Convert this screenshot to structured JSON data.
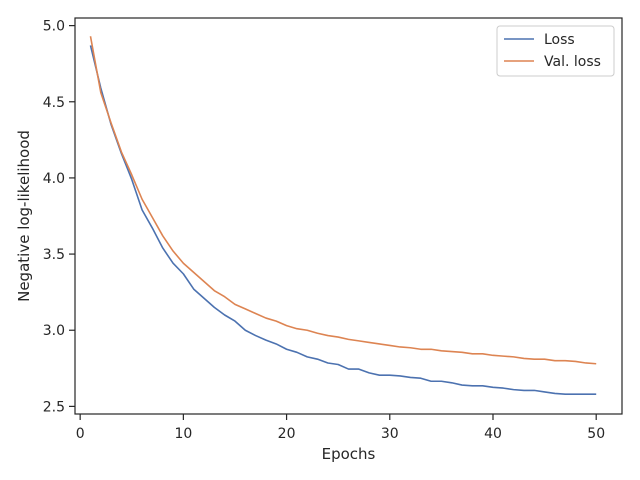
{
  "chart_data": {
    "type": "line",
    "xlabel": "Epochs",
    "ylabel": "Negative log-likelihood",
    "xlim": [
      -0.5,
      52.5
    ],
    "ylim": [
      2.45,
      5.05
    ],
    "xticks": [
      0,
      10,
      20,
      30,
      40,
      50
    ],
    "yticks": [
      2.5,
      3.0,
      3.5,
      4.0,
      4.5,
      5.0
    ],
    "xtick_labels": [
      "0",
      "10",
      "20",
      "30",
      "40",
      "50"
    ],
    "ytick_labels": [
      "2.5",
      "3.0",
      "3.5",
      "4.0",
      "4.5",
      "5.0"
    ],
    "grid": false,
    "legend_position": "top-right",
    "x": [
      1,
      2,
      3,
      4,
      5,
      6,
      7,
      8,
      9,
      10,
      11,
      12,
      13,
      14,
      15,
      16,
      17,
      18,
      19,
      20,
      21,
      22,
      23,
      24,
      25,
      26,
      27,
      28,
      29,
      30,
      31,
      32,
      33,
      34,
      35,
      36,
      37,
      38,
      39,
      40,
      41,
      42,
      43,
      44,
      45,
      46,
      47,
      48,
      49,
      50
    ],
    "series": [
      {
        "name": "Loss",
        "color": "#4c72b0",
        "values": [
          4.87,
          4.59,
          4.35,
          4.16,
          3.99,
          3.79,
          3.67,
          3.54,
          3.44,
          3.37,
          3.27,
          3.21,
          3.15,
          3.1,
          3.06,
          3.0,
          2.965,
          2.935,
          2.91,
          2.875,
          2.855,
          2.825,
          2.81,
          2.785,
          2.775,
          2.745,
          2.745,
          2.72,
          2.705,
          2.705,
          2.7,
          2.69,
          2.685,
          2.665,
          2.665,
          2.655,
          2.64,
          2.635,
          2.635,
          2.625,
          2.62,
          2.61,
          2.605,
          2.605,
          2.595,
          2.585,
          2.58,
          2.58,
          2.58,
          2.58
        ]
      },
      {
        "name": "Val. loss",
        "color": "#dd8452",
        "values": [
          4.93,
          4.56,
          4.36,
          4.17,
          4.02,
          3.86,
          3.74,
          3.62,
          3.52,
          3.44,
          3.38,
          3.32,
          3.26,
          3.22,
          3.17,
          3.14,
          3.11,
          3.08,
          3.06,
          3.03,
          3.01,
          3.0,
          2.98,
          2.965,
          2.955,
          2.94,
          2.93,
          2.92,
          2.91,
          2.9,
          2.89,
          2.885,
          2.875,
          2.875,
          2.865,
          2.86,
          2.855,
          2.845,
          2.845,
          2.835,
          2.83,
          2.825,
          2.815,
          2.81,
          2.81,
          2.8,
          2.8,
          2.795,
          2.785,
          2.78
        ]
      }
    ]
  },
  "colors": {
    "axes": "#262626",
    "background": "#ffffff"
  }
}
